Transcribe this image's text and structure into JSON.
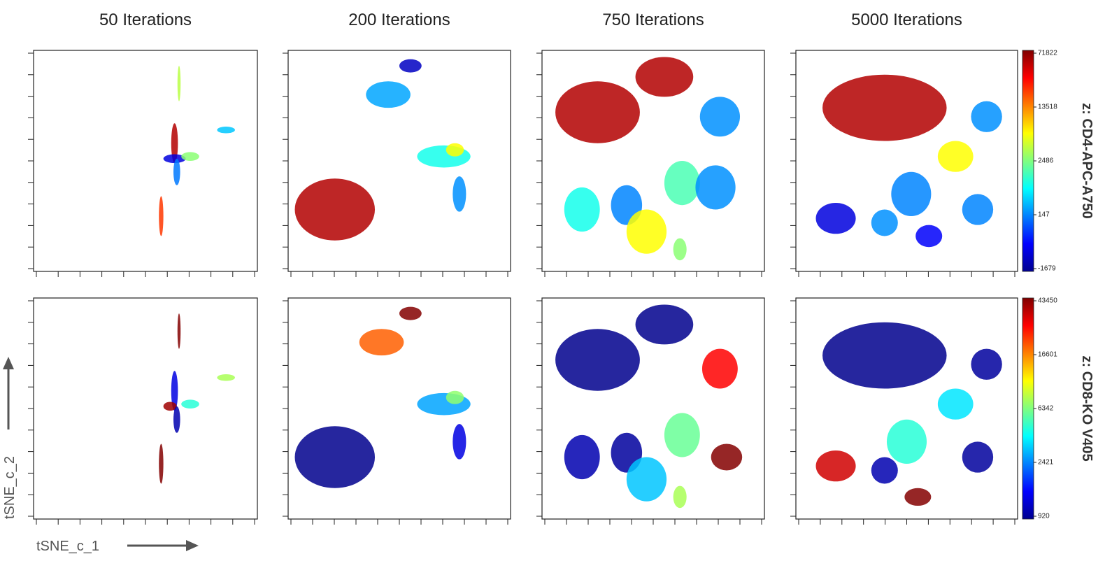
{
  "chart_data": [
    {
      "type": "scatter",
      "title": "50 Iterations",
      "x": [
        63,
        63,
        64,
        70,
        86,
        65,
        57
      ],
      "y": [
        58,
        51,
        45,
        52,
        64,
        85,
        25
      ],
      "rx": [
        1.5,
        5,
        1.5,
        4,
        4,
        0.7,
        1
      ],
      "ry": [
        9,
        2,
        6,
        2,
        1.5,
        8,
        9
      ],
      "z": [
        60000,
        -1000,
        100,
        3000,
        800,
        5000,
        30000
      ]
    },
    {
      "type": "scatter",
      "title": "200 Iterations",
      "x": [
        21,
        45,
        55,
        70,
        75,
        77
      ],
      "y": [
        28,
        80,
        93,
        52,
        55,
        35
      ],
      "rx": [
        18,
        10,
        5,
        12,
        4,
        3
      ],
      "ry": [
        14,
        6,
        3,
        5,
        3,
        8
      ],
      "z": [
        60000,
        500,
        -1200,
        1500,
        8000,
        300
      ]
    },
    {
      "type": "scatter",
      "title": "750 Iterations",
      "x": [
        25,
        55,
        80,
        18,
        38,
        47,
        63,
        78,
        62
      ],
      "y": [
        72,
        88,
        70,
        28,
        30,
        18,
        40,
        38,
        10
      ],
      "rx": [
        19,
        13,
        9,
        8,
        7,
        9,
        8,
        9,
        3
      ],
      "ry": [
        14,
        9,
        9,
        10,
        9,
        10,
        10,
        10,
        5
      ],
      "z": [
        60000,
        60000,
        300,
        1500,
        200,
        8000,
        2000,
        300,
        3000
      ]
    },
    {
      "type": "scatter",
      "title": "5000 Iterations",
      "x": [
        40,
        72,
        86,
        18,
        40,
        52,
        60,
        82
      ],
      "y": [
        74,
        52,
        70,
        24,
        22,
        35,
        16,
        28
      ],
      "rx": [
        28,
        8,
        7,
        9,
        6,
        9,
        6,
        7
      ],
      "ry": [
        15,
        7,
        7,
        7,
        6,
        10,
        5,
        7
      ],
      "z": [
        60000,
        8000,
        300,
        -1000,
        300,
        200,
        -800,
        200
      ],
      "colorbar": {
        "label": "z: CD4-APC-A750",
        "ticks": [
          -1679,
          147,
          2486,
          13518,
          71822
        ]
      }
    },
    {
      "type": "scatter",
      "xlabel": "tSNE_c_1",
      "ylabel": "tSNE_c_2",
      "x": [
        63,
        61,
        64,
        70,
        86,
        65,
        57
      ],
      "y": [
        58,
        51,
        45,
        52,
        64,
        85,
        25
      ],
      "rx": [
        1.5,
        3,
        1.5,
        4,
        4,
        0.7,
        1
      ],
      "ry": [
        9,
        2,
        6,
        2,
        1.5,
        8,
        9
      ],
      "z": [
        1500,
        40000,
        1200,
        5000,
        8000,
        43000,
        43000
      ]
    },
    {
      "type": "scatter",
      "x": [
        21,
        42,
        55,
        70,
        75,
        77
      ],
      "y": [
        28,
        80,
        93,
        52,
        55,
        35
      ],
      "rx": [
        18,
        10,
        5,
        12,
        4,
        3
      ],
      "ry": [
        14,
        6,
        3,
        5,
        3,
        8
      ],
      "z": [
        1000,
        20000,
        43000,
        3000,
        7000,
        1500
      ]
    },
    {
      "type": "scatter",
      "x": [
        25,
        55,
        80,
        18,
        38,
        47,
        63,
        83,
        62
      ],
      "y": [
        72,
        88,
        68,
        28,
        30,
        18,
        38,
        28,
        10
      ],
      "rx": [
        19,
        13,
        8,
        8,
        7,
        9,
        8,
        7,
        3
      ],
      "ry": [
        14,
        9,
        9,
        10,
        9,
        10,
        10,
        6,
        5
      ],
      "z": [
        1000,
        1000,
        30000,
        1200,
        1100,
        3500,
        6000,
        43000,
        8000
      ]
    },
    {
      "type": "scatter",
      "x": [
        40,
        72,
        86,
        18,
        40,
        50,
        55,
        82
      ],
      "y": [
        74,
        52,
        70,
        24,
        22,
        35,
        10,
        28
      ],
      "rx": [
        28,
        8,
        7,
        9,
        6,
        9,
        6,
        7
      ],
      "ry": [
        15,
        7,
        7,
        7,
        6,
        10,
        4,
        7
      ],
      "z": [
        1000,
        4000,
        1100,
        35000,
        1200,
        5000,
        43000,
        1100
      ],
      "colorbar": {
        "label": "z: CD8-KO V405",
        "ticks": [
          920,
          2421,
          6342,
          16601,
          43450
        ]
      }
    }
  ]
}
